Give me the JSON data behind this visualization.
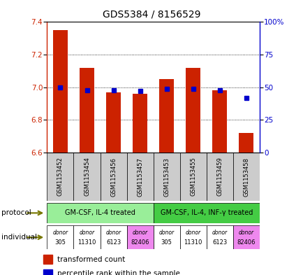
{
  "title": "GDS5384 / 8156529",
  "samples": [
    "GSM1153452",
    "GSM1153454",
    "GSM1153456",
    "GSM1153457",
    "GSM1153453",
    "GSM1153455",
    "GSM1153459",
    "GSM1153458"
  ],
  "bar_values": [
    7.35,
    7.12,
    6.97,
    6.96,
    7.05,
    7.12,
    6.98,
    6.72
  ],
  "bar_bottom": 6.6,
  "percentile_values": [
    50,
    48,
    48,
    47,
    49,
    49,
    48,
    42
  ],
  "ylim": [
    6.6,
    7.4
  ],
  "yticks": [
    6.6,
    6.8,
    7.0,
    7.2,
    7.4
  ],
  "y2ticks": [
    0,
    25,
    50,
    75,
    100
  ],
  "y2labels": [
    "0",
    "25",
    "50",
    "75",
    "100%"
  ],
  "bar_color": "#cc2200",
  "dot_color": "#0000cc",
  "protocol_groups": [
    {
      "label": "GM-CSF, IL-4 treated",
      "start": 0,
      "end": 4,
      "color": "#99ee99"
    },
    {
      "label": "GM-CSF, IL-4, INF-γ treated",
      "start": 4,
      "end": 8,
      "color": "#44cc44"
    }
  ],
  "donors": [
    "305",
    "11310",
    "6123",
    "82406",
    "305",
    "11310",
    "6123",
    "82406"
  ],
  "donor_colors": [
    "#ffffff",
    "#ffffff",
    "#ffffff",
    "#ee88ee",
    "#ffffff",
    "#ffffff",
    "#ffffff",
    "#ee88ee"
  ],
  "individual_label": "individual",
  "protocol_label": "protocol",
  "legend_bar_label": "transformed count",
  "legend_dot_label": "percentile rank within the sample",
  "title_fontsize": 10,
  "tick_fontsize": 7.5,
  "label_area_bg": "#cccccc",
  "chart_bg": "#ffffff",
  "arrow_color": "#888800"
}
